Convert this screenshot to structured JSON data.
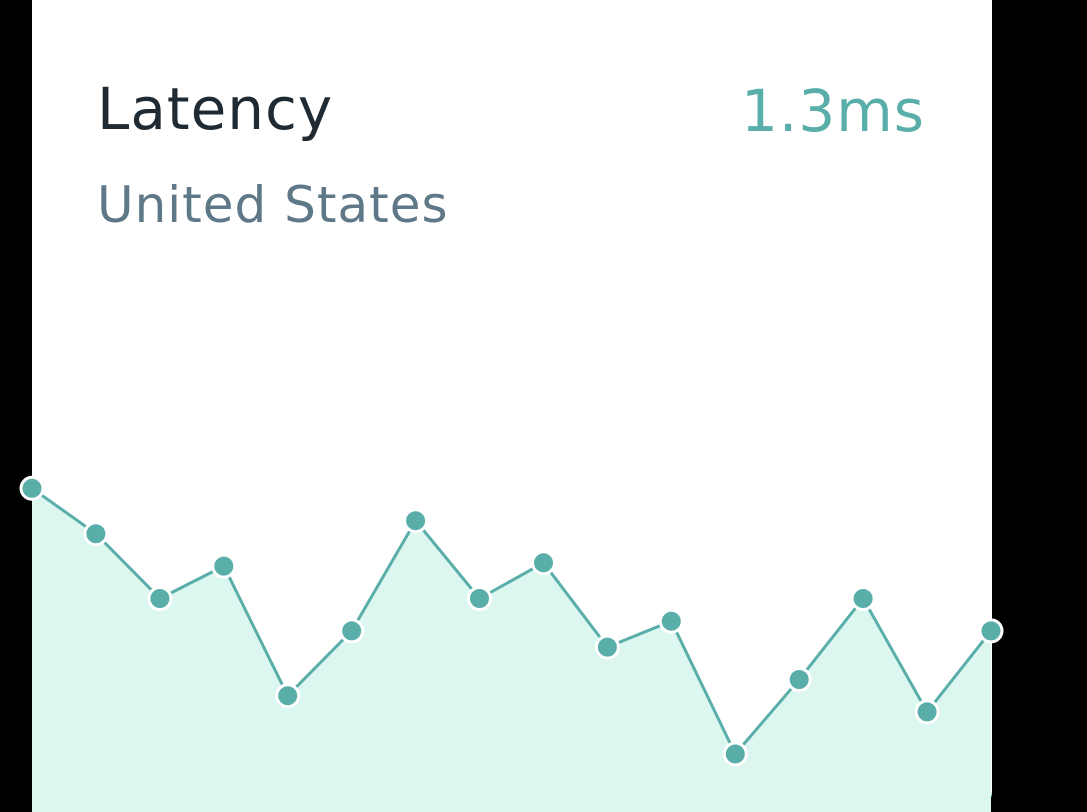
{
  "card": {
    "title": "Latency",
    "subtitle": "United States",
    "value": "1.3ms"
  },
  "colors": {
    "line": "#5aaeaa",
    "fill": "#dcf7f0",
    "point_fill": "#5aaeaa",
    "point_stroke": "#ffffff",
    "accent_bottom": "#2ec9a0"
  },
  "chart_data": {
    "type": "area",
    "x": [
      1,
      2,
      3,
      4,
      5,
      6,
      7,
      8,
      9,
      10,
      11,
      12,
      13,
      14,
      15,
      16
    ],
    "values": [
      0.82,
      0.68,
      0.48,
      0.58,
      0.18,
      0.38,
      0.72,
      0.48,
      0.59,
      0.33,
      0.41,
      0,
      0.23,
      0.48,
      0.13,
      0.38
    ],
    "ylim": [
      0,
      1
    ],
    "grid": false,
    "legend": "none"
  }
}
